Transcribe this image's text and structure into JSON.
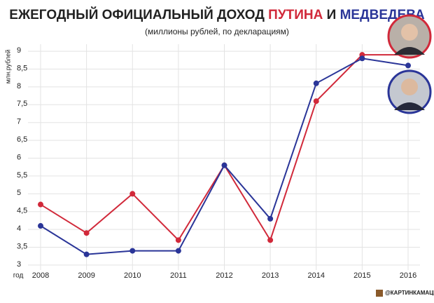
{
  "chart_data": {
    "type": "line",
    "title_start": "ЕЖЕГОДНЫЙ ОФИЦИАЛЬНЫЙ ДОХОД",
    "title_and": "И",
    "subtitle": "(миллионы рублей, по декларациям)",
    "y_label": "млн.рублей",
    "x_label": "год",
    "credit": "@КАРТИНКАМАЦИЯ",
    "categories": [
      "2008",
      "2009",
      "2010",
      "2011",
      "2012",
      "2013",
      "2014",
      "2015",
      "2016"
    ],
    "series": [
      {
        "name": "ПУТИНА",
        "color": "#d1293a",
        "values": [
          4.7,
          3.9,
          5.0,
          3.7,
          5.8,
          3.7,
          7.6,
          8.9,
          8.9
        ]
      },
      {
        "name": "МЕДВЕДЕВА",
        "color": "#2a3598",
        "values": [
          4.1,
          3.3,
          3.4,
          3.4,
          5.8,
          4.3,
          8.1,
          8.8,
          8.6
        ]
      }
    ],
    "ylim": [
      2.9,
      9.1
    ],
    "yticks": [
      3,
      {
        "value": 3.5,
        "label": "3,5"
      },
      4,
      {
        "value": 4.5,
        "label": "4,5"
      },
      5,
      {
        "value": 5.5,
        "label": "5,5"
      },
      6,
      {
        "value": 6.5,
        "label": "6,5"
      },
      7,
      {
        "value": 7.5,
        "label": "7,5"
      },
      8,
      {
        "value": 8.5,
        "label": "8,5"
      },
      9
    ],
    "grid": true
  }
}
